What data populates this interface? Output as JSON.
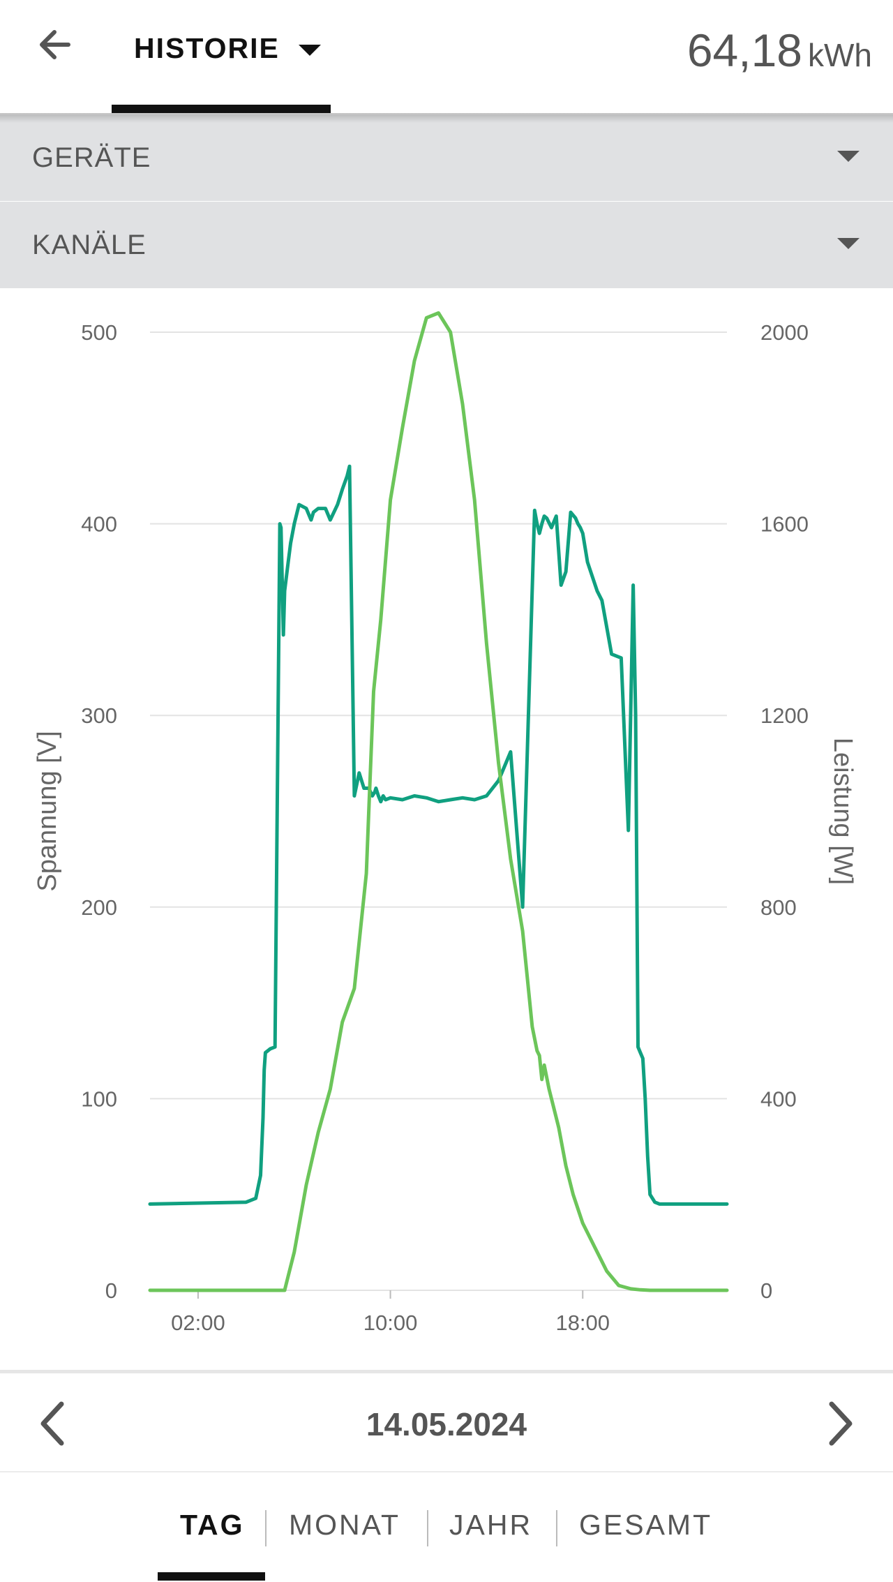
{
  "header": {
    "back_icon": "arrow-left-icon",
    "tab_label": "HISTORIE",
    "energy_value": "64,18",
    "energy_unit": "kWh"
  },
  "filters": {
    "devices_label": "GERÄTE",
    "channels_label": "KANÄLE"
  },
  "navigation": {
    "date": "14.05.2024",
    "prev_icon": "chevron-left-icon",
    "next_icon": "chevron-right-icon"
  },
  "period_tabs": [
    {
      "label": "TAG",
      "active": true
    },
    {
      "label": "MONAT",
      "active": false
    },
    {
      "label": "JAHR",
      "active": false
    },
    {
      "label": "GESAMT",
      "active": false
    }
  ],
  "colors": {
    "voltage_line": "#10a080",
    "power_line": "#6cc55a",
    "grid": "#e3e3e3",
    "filter_bg": "#e0e1e3"
  },
  "chart_data": {
    "type": "line",
    "xlabel": "",
    "ylabel_left": "Spannung [V]",
    "ylabel_right": "Leistung [W]",
    "x_ticks": [
      "02:00",
      "10:00",
      "18:00"
    ],
    "x_tick_hours": [
      2,
      10,
      18
    ],
    "xlim": [
      0,
      24
    ],
    "ylim_left": [
      0,
      500
    ],
    "ylim_right": [
      0,
      2000
    ],
    "y_ticks_left": [
      0,
      100,
      200,
      300,
      400,
      500
    ],
    "y_ticks_right": [
      0,
      400,
      800,
      1200,
      1600,
      2000
    ],
    "grid": true,
    "series": [
      {
        "axis": "left",
        "color": "#10a080",
        "x": [
          0,
          4.0,
          4.4,
          4.6,
          4.7,
          4.75,
          4.8,
          5.0,
          5.2,
          5.4,
          5.45,
          5.55,
          5.6,
          5.75,
          5.85,
          6.0,
          6.2,
          6.5,
          6.7,
          6.8,
          7.0,
          7.3,
          7.5,
          7.8,
          8.0,
          8.2,
          8.3,
          8.5,
          8.7,
          8.9,
          9.1,
          9.25,
          9.35,
          9.4,
          9.5,
          9.6,
          9.7,
          9.8,
          10.0,
          10.5,
          11.0,
          11.5,
          12.0,
          12.5,
          13.0,
          13.5,
          14.0,
          14.5,
          15.0,
          15.5,
          16.0,
          16.1,
          16.2,
          16.3,
          16.4,
          16.5,
          16.7,
          16.9,
          17.1,
          17.3,
          17.5,
          17.7,
          17.8,
          17.9,
          18.0,
          18.2,
          18.6,
          18.8,
          19.2,
          19.6,
          19.9,
          20.1,
          20.2,
          20.3,
          20.4,
          20.5,
          20.6,
          20.7,
          20.8,
          21.0,
          21.2,
          21.4,
          21.6,
          22.0,
          24.0
        ],
        "values": [
          45,
          46,
          48,
          60,
          90,
          115,
          124,
          126,
          127,
          400,
          398,
          342,
          365,
          380,
          390,
          400,
          410,
          408,
          402,
          406,
          408,
          408,
          402,
          410,
          418,
          425,
          430,
          258,
          270,
          262,
          262,
          258,
          260,
          262,
          258,
          255,
          258,
          256,
          257,
          256,
          258,
          257,
          255,
          256,
          257,
          256,
          258,
          266,
          281,
          200,
          407,
          400,
          395,
          400,
          404,
          403,
          398,
          404,
          368,
          375,
          406,
          403,
          400,
          398,
          395,
          380,
          365,
          360,
          332,
          330,
          240,
          368,
          300,
          127,
          124,
          121,
          100,
          70,
          50,
          46,
          45,
          45,
          45,
          45,
          45
        ]
      },
      {
        "axis": "right",
        "color": "#6cc55a",
        "x": [
          0,
          5.6,
          5.7,
          6.0,
          6.5,
          7.0,
          7.5,
          8.0,
          8.5,
          9.0,
          9.1,
          9.3,
          9.6,
          10.0,
          10.5,
          11.0,
          11.5,
          12.0,
          12.5,
          13.0,
          13.5,
          14.0,
          14.5,
          15.0,
          15.5,
          15.9,
          16.1,
          16.2,
          16.3,
          16.4,
          16.6,
          16.8,
          17.0,
          17.3,
          17.6,
          18.0,
          18.5,
          19.0,
          19.5,
          20.0,
          20.4,
          20.8,
          24.0
        ],
        "values": [
          0,
          0,
          20,
          80,
          220,
          330,
          420,
          560,
          630,
          870,
          1000,
          1250,
          1400,
          1650,
          1800,
          1940,
          2030,
          2040,
          2000,
          1850,
          1650,
          1350,
          1100,
          900,
          750,
          550,
          500,
          490,
          440,
          470,
          420,
          380,
          340,
          260,
          200,
          140,
          90,
          40,
          10,
          3,
          1,
          0,
          0
        ]
      }
    ]
  }
}
